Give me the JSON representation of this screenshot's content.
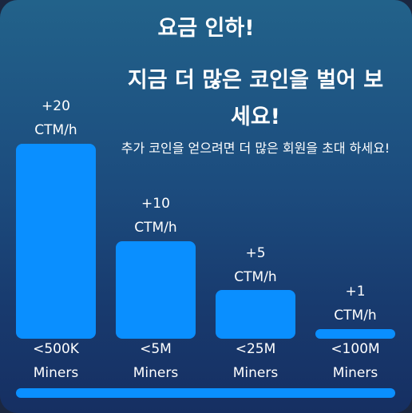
{
  "title": "요금 인하!",
  "headline": "지금 더 많은 코인을 벌어 보세요!",
  "subtitle": "추가 코인을 얻으려면 더 많은 회원을 초대 하세요!",
  "accent_color": "#0a8fff",
  "tiers": [
    {
      "reward": "+20",
      "unit": "CTM/h",
      "range": "<500K",
      "range_unit": "Miners"
    },
    {
      "reward": "+10",
      "unit": "CTM/h",
      "range": "<5M",
      "range_unit": "Miners"
    },
    {
      "reward": "+5",
      "unit": "CTM/h",
      "range": "<25M",
      "range_unit": "Miners"
    },
    {
      "reward": "+1",
      "unit": "CTM/h",
      "range": "<100M",
      "range_unit": "Miners"
    }
  ]
}
